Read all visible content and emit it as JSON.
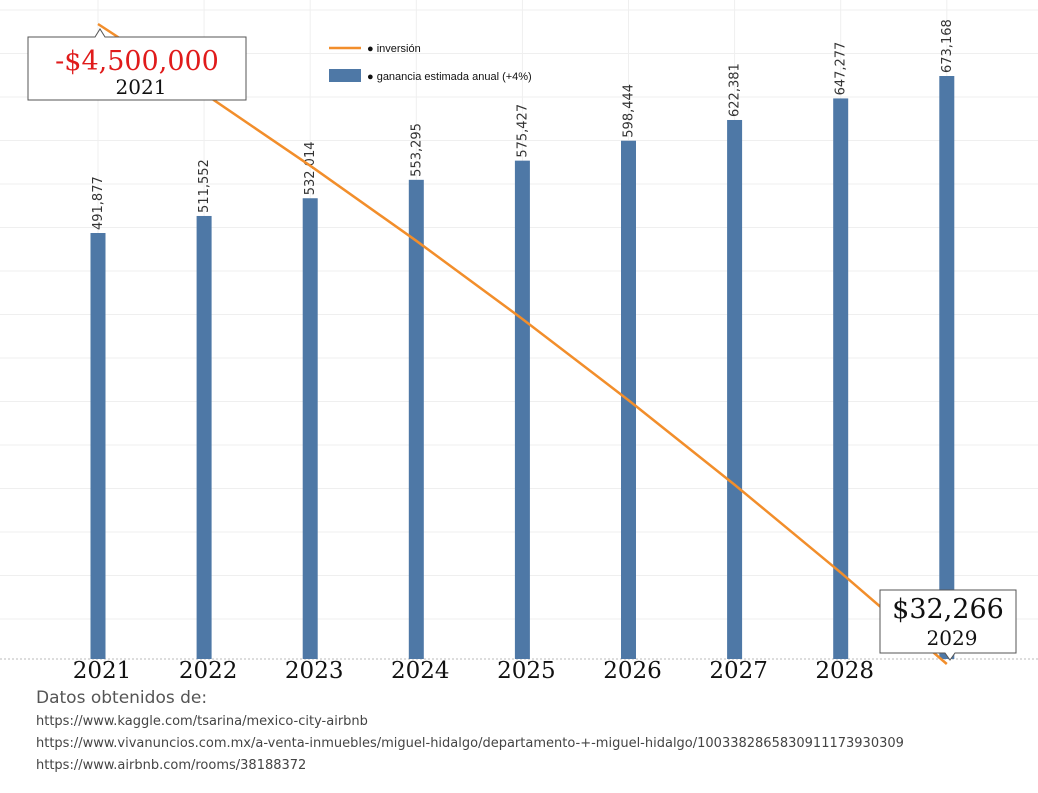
{
  "chart_data": {
    "type": "bar",
    "categories": [
      "2021",
      "2022",
      "2023",
      "2024",
      "2025",
      "2026",
      "2027",
      "2028",
      "2029"
    ],
    "series": [
      {
        "name": "ganancia estimada anual (+4%)",
        "type": "bar",
        "values": [
          491877,
          511552,
          532014,
          553295,
          575427,
          598444,
          622381,
          647277,
          673168
        ],
        "labels": [
          "491,877",
          "511,552",
          "532,014",
          "553,295",
          "575,427",
          "598,444",
          "622,381",
          "647,277",
          "673,168"
        ],
        "color": "#4e78a6"
      },
      {
        "name": "inversión",
        "type": "line",
        "values": [
          -4500000,
          -4008123,
          -3496571,
          -2964557,
          -2411262,
          -1835835,
          -1237391,
          -615010,
          32266
        ],
        "color": "#f28e2b"
      }
    ],
    "tick_labels": [
      "2021",
      "2022",
      "2023",
      "2024",
      "2025",
      "2026",
      "2027",
      "2028"
    ],
    "legend": {
      "position": "top",
      "items": [
        "● inversión",
        "● ganancia estimada anual (+4%)"
      ]
    },
    "annotations": [
      {
        "value_text": "-$4,500,000",
        "year_text": "2021",
        "color": "#e01b1b"
      },
      {
        "value_text": "$32,266",
        "year_text": "2029",
        "color": "#111111"
      }
    ],
    "grid": true
  },
  "sources": {
    "heading": "Datos obtenidos de:",
    "urls": [
      "https://www.kaggle.com/tsarina/mexico-city-airbnb",
      "https://www.vivanuncios.com.mx/a-venta-inmuebles/miguel-hidalgo/departamento-+-miguel-hidalgo/1003382865830911173930309",
      "https://www.airbnb.com/rooms/38188372"
    ]
  }
}
